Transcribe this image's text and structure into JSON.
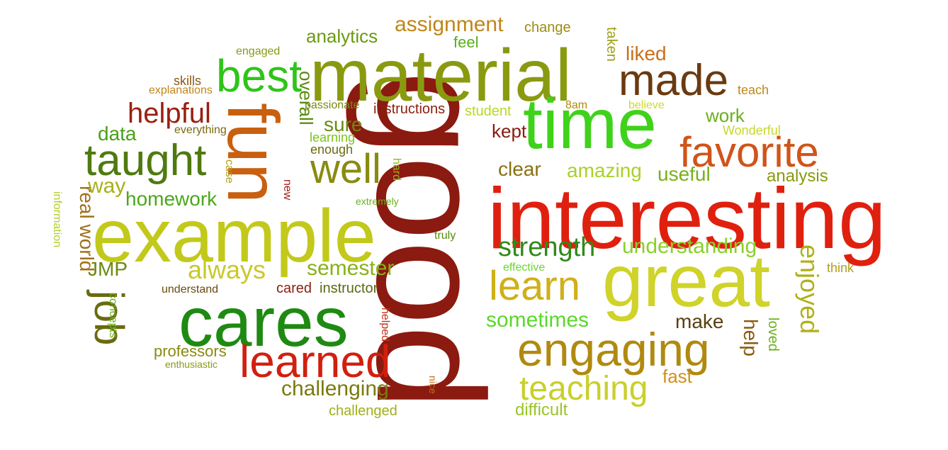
{
  "words": [
    {
      "text": "good",
      "color": "#8b1a10"
    },
    {
      "text": "material",
      "color": "#8a9a10"
    },
    {
      "text": "interesting",
      "color": "#e0200f"
    },
    {
      "text": "example",
      "color": "#c2c91a"
    },
    {
      "text": "great",
      "color": "#cfd32a"
    },
    {
      "text": "time",
      "color": "#3fd21a"
    },
    {
      "text": "cares",
      "color": "#1f8a12"
    },
    {
      "text": "fun",
      "color": "#c8600f"
    },
    {
      "text": "engaging",
      "color": "#b08a10"
    },
    {
      "text": "learned",
      "color": "#d0200f"
    },
    {
      "text": "taught",
      "color": "#4f7a10"
    },
    {
      "text": "favorite",
      "color": "#d0541a"
    },
    {
      "text": "made",
      "color": "#6a3a10"
    },
    {
      "text": "best",
      "color": "#2fc41a"
    },
    {
      "text": "well",
      "color": "#8a8a10"
    },
    {
      "text": "learn",
      "color": "#d0b01a"
    },
    {
      "text": "job",
      "color": "#6a6a10"
    },
    {
      "text": "teaching",
      "color": "#c9d02a"
    },
    {
      "text": "helpful",
      "color": "#9a2010"
    },
    {
      "text": "strength",
      "color": "#2f8a1a"
    },
    {
      "text": "always",
      "color": "#c9c92a"
    },
    {
      "text": "understanding",
      "color": "#8ad02a"
    },
    {
      "text": "enjoyed",
      "color": "#b0b01a"
    },
    {
      "text": "challenging",
      "color": "#7a7a10"
    },
    {
      "text": "sometimes",
      "color": "#5ad82a"
    },
    {
      "text": "semester",
      "color": "#8ab01a"
    },
    {
      "text": "amazing",
      "color": "#aad02a"
    },
    {
      "text": "useful",
      "color": "#7ab01a"
    },
    {
      "text": "homework",
      "color": "#4aa81a"
    },
    {
      "text": "assignment",
      "color": "#c0861a"
    },
    {
      "text": "analytics",
      "color": "#6a9a10"
    },
    {
      "text": "overall",
      "color": "#5a8a10"
    },
    {
      "text": "clear",
      "color": "#8a7010"
    },
    {
      "text": "liked",
      "color": "#c8701a"
    },
    {
      "text": "data",
      "color": "#4aa01a"
    },
    {
      "text": "way",
      "color": "#a8b01a"
    },
    {
      "text": "real world",
      "color": "#a0701a"
    },
    {
      "text": "JMP",
      "color": "#6a8a10"
    },
    {
      "text": "sure",
      "color": "#6a8a10"
    },
    {
      "text": "work",
      "color": "#6ab01a"
    },
    {
      "text": "kept",
      "color": "#8b1a10"
    },
    {
      "text": "analysis",
      "color": "#8a9a10"
    },
    {
      "text": "make",
      "color": "#5a4010"
    },
    {
      "text": "help",
      "color": "#8a5a10"
    },
    {
      "text": "difficult",
      "color": "#9ac42a"
    },
    {
      "text": "fast",
      "color": "#d0901a"
    },
    {
      "text": "professors",
      "color": "#8a8a10"
    },
    {
      "text": "instructions",
      "color": "#8b2010"
    },
    {
      "text": "cared",
      "color": "#8b2010"
    },
    {
      "text": "instructor",
      "color": "#5a6a10"
    },
    {
      "text": "loved",
      "color": "#6ab01a"
    },
    {
      "text": "challenged",
      "color": "#a0b01a"
    },
    {
      "text": "feel",
      "color": "#5ab01a"
    },
    {
      "text": "change",
      "color": "#a08a10"
    },
    {
      "text": "taken",
      "color": "#a0a01a"
    },
    {
      "text": "engaged",
      "color": "#8a9a10"
    },
    {
      "text": "skills",
      "color": "#8a5a10"
    },
    {
      "text": "explanations",
      "color": "#c0861a"
    },
    {
      "text": "teach",
      "color": "#c0861a"
    },
    {
      "text": "passionate",
      "color": "#7a8a10"
    },
    {
      "text": "student",
      "color": "#b8d82a"
    },
    {
      "text": "8am",
      "color": "#b08a10"
    },
    {
      "text": "believe",
      "color": "#d0d82a"
    },
    {
      "text": "everything",
      "color": "#7a6a10"
    },
    {
      "text": "learning",
      "color": "#7ac41a"
    },
    {
      "text": "Wonderful",
      "color": "#c8d82a"
    },
    {
      "text": "enough",
      "color": "#6a6a10"
    },
    {
      "text": "hard",
      "color": "#9ab01a"
    },
    {
      "text": "case",
      "color": "#b0a01a"
    },
    {
      "text": "new",
      "color": "#a0201a"
    },
    {
      "text": "extremely",
      "color": "#6ab01a"
    },
    {
      "text": "information",
      "color": "#b0d02a"
    },
    {
      "text": "truly",
      "color": "#5a8a10"
    },
    {
      "text": "effective",
      "color": "#6ad82a"
    },
    {
      "text": "think",
      "color": "#b0a01a"
    },
    {
      "text": "understand",
      "color": "#6a4a10"
    },
    {
      "text": "concepts",
      "color": "#6ab01a"
    },
    {
      "text": "helped",
      "color": "#c0301a"
    },
    {
      "text": "enthusiastic",
      "color": "#8a9a10"
    },
    {
      "text": "nice",
      "color": "#c8701a"
    }
  ]
}
